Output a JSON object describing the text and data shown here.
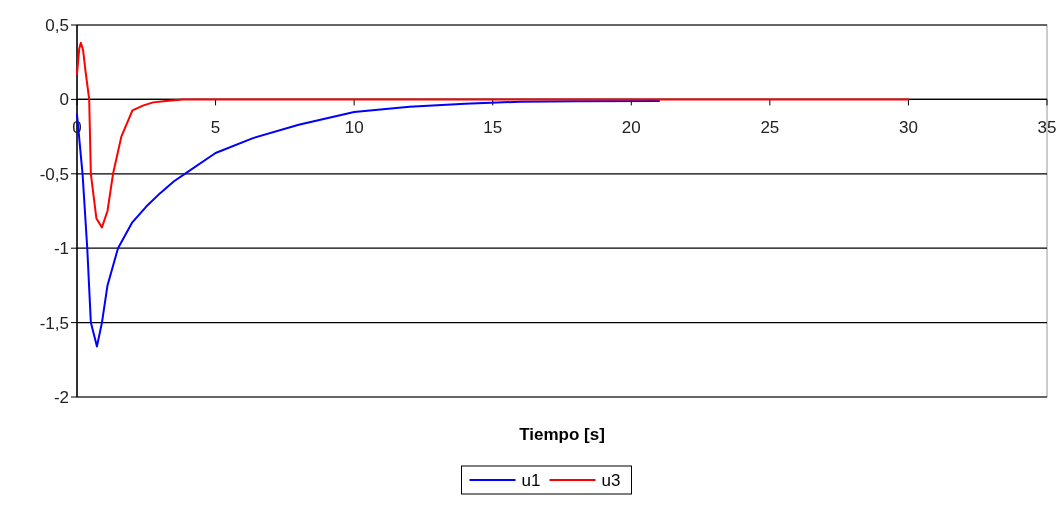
{
  "chart_data": {
    "type": "line",
    "xlabel": "Tiempo [s]",
    "xlim": [
      0,
      35
    ],
    "xticks": [
      0,
      5,
      10,
      15,
      20,
      25,
      30,
      35
    ],
    "ylim": [
      -2,
      0.5
    ],
    "yticks": [
      {
        "value": -2,
        "label": "-2"
      },
      {
        "value": -1.5,
        "label": "-1,5"
      },
      {
        "value": -1,
        "label": "-1"
      },
      {
        "value": -0.5,
        "label": "-0,5"
      },
      {
        "value": 0,
        "label": "0"
      },
      {
        "value": 0.5,
        "label": "0,5"
      }
    ],
    "grid": "y",
    "legend": "bottom",
    "marker": "none",
    "line_style": "solid",
    "series": [
      {
        "name": "u1",
        "color": "#0000ff",
        "x": [
          0,
          0.2,
          0.37,
          0.5,
          0.72,
          0.9,
          1.1,
          1.48,
          1.98,
          2.5,
          3.0,
          3.5,
          3.97,
          5,
          6.35,
          8,
          10,
          12,
          14,
          16,
          18,
          21
        ],
        "values": [
          -0.1,
          -0.5,
          -1.0,
          -1.5,
          -1.66,
          -1.5,
          -1.25,
          -1.0,
          -0.83,
          -0.72,
          -0.63,
          -0.55,
          -0.49,
          -0.36,
          -0.26,
          -0.17,
          -0.085,
          -0.05,
          -0.03,
          -0.015,
          -0.012,
          -0.01
        ]
      },
      {
        "name": "u3",
        "color": "#ff0000",
        "x": [
          0,
          0.08,
          0.14,
          0.22,
          0.3,
          0.44,
          0.5,
          0.7,
          0.9,
          1.1,
          1.3,
          1.6,
          2.0,
          2.4,
          2.75,
          3.2,
          3.83,
          30
        ],
        "values": [
          0.17,
          0.34,
          0.38,
          0.33,
          0.2,
          0,
          -0.5,
          -0.8,
          -0.86,
          -0.75,
          -0.5,
          -0.25,
          -0.074,
          -0.04,
          -0.02,
          -0.01,
          0,
          0
        ]
      }
    ]
  }
}
